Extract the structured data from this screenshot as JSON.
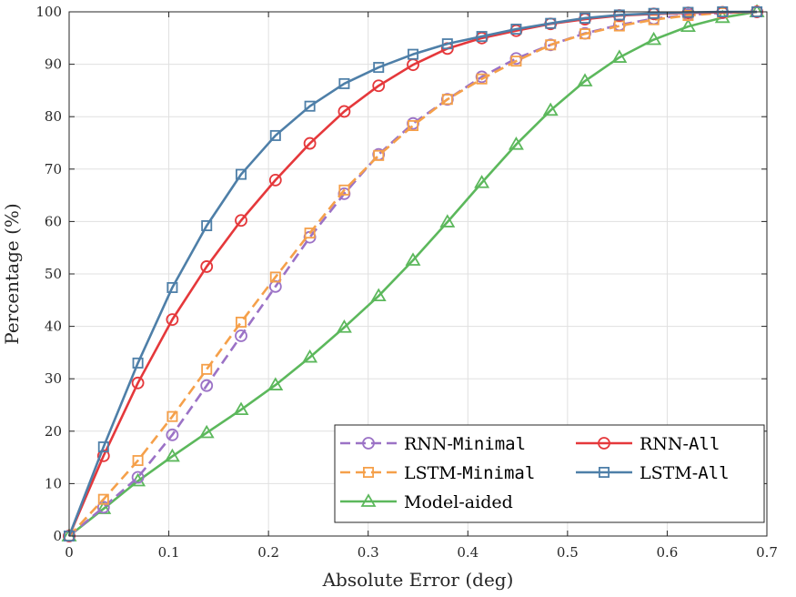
{
  "chart_data": {
    "type": "line",
    "xlabel": "Absolute Error (deg)",
    "ylabel": "Percentage (%)",
    "xlim": [
      0,
      0.7
    ],
    "ylim": [
      0,
      100
    ],
    "xticks": [
      0,
      0.1,
      0.2,
      0.3,
      0.4,
      0.5,
      0.6,
      0.7
    ],
    "xtick_labels": [
      "0",
      "0.1",
      "0.2",
      "0.3",
      "0.4",
      "0.5",
      "0.6",
      "0.7"
    ],
    "yticks": [
      0,
      10,
      20,
      30,
      40,
      50,
      60,
      70,
      80,
      90,
      100
    ],
    "ytick_labels": [
      "0",
      "10",
      "20",
      "30",
      "40",
      "50",
      "60",
      "70",
      "80",
      "90",
      "100"
    ],
    "grid": true,
    "legend_position": "bottom-right",
    "x": [
      0,
      0.0345,
      0.069,
      0.1035,
      0.138,
      0.1725,
      0.207,
      0.2415,
      0.276,
      0.3105,
      0.345,
      0.3795,
      0.414,
      0.4485,
      0.483,
      0.5175,
      0.552,
      0.5865,
      0.621,
      0.6555,
      0.69
    ],
    "series": [
      {
        "name_main": "RNN-",
        "name_mono": "Minimal",
        "color": "#9b72c6",
        "dash": "dashed",
        "marker": "circle",
        "values": [
          0,
          5.5,
          11.2,
          19.3,
          28.7,
          38.2,
          47.6,
          57,
          65.3,
          72.8,
          78.7,
          83.3,
          87.6,
          91.1,
          93.7,
          95.9,
          97.5,
          98.7,
          99.4,
          99.8,
          100
        ]
      },
      {
        "name_main": "RNN-",
        "name_mono": "All",
        "color": "#e5383b",
        "dash": "solid",
        "marker": "circle",
        "values": [
          0,
          15.3,
          29.2,
          41.3,
          51.4,
          60.2,
          67.9,
          74.9,
          81,
          85.9,
          89.9,
          93,
          95,
          96.4,
          97.7,
          98.6,
          99.3,
          99.6,
          99.8,
          99.9,
          100
        ]
      },
      {
        "name_main": "LSTM-",
        "name_mono": "Minimal",
        "color": "#f5a04a",
        "dash": "dashed",
        "marker": "square",
        "values": [
          0,
          7,
          14.4,
          22.8,
          31.8,
          40.8,
          49.4,
          57.8,
          66,
          72.6,
          78.3,
          83.3,
          87.2,
          90.6,
          93.7,
          95.8,
          97.3,
          98.5,
          99.3,
          99.8,
          100
        ]
      },
      {
        "name_main": "LSTM-",
        "name_mono": "All",
        "color": "#4e7fa8",
        "dash": "solid",
        "marker": "square",
        "values": [
          0,
          17,
          33,
          47.4,
          59.2,
          69,
          76.4,
          82,
          86.3,
          89.4,
          91.9,
          93.9,
          95.3,
          96.7,
          97.8,
          98.8,
          99.4,
          99.7,
          99.9,
          100,
          100
        ]
      },
      {
        "name_main": "Model-aided",
        "name_mono": "",
        "color": "#5cb85c",
        "dash": "solid",
        "marker": "triangle",
        "values": [
          0,
          5.2,
          10.5,
          15.2,
          19.7,
          24.1,
          28.8,
          34.1,
          39.8,
          45.8,
          52.6,
          59.9,
          67.4,
          74.7,
          81.2,
          86.8,
          91.3,
          94.7,
          97.2,
          98.9,
          100
        ]
      }
    ]
  }
}
